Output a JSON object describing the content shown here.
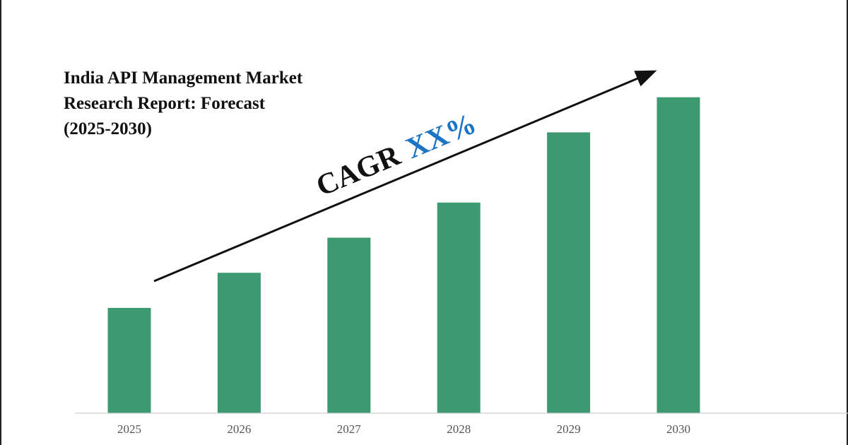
{
  "title": {
    "line1": "India API Management Market",
    "line2": "Research Report: Forecast",
    "line3": "(2025-2030)"
  },
  "cagr": {
    "label": "CAGR",
    "value": "XX%"
  },
  "colors": {
    "bar": "#3d9970",
    "accent": "#1c74c4",
    "text": "#111111",
    "axis": "#cfcfcf"
  },
  "chart_data": {
    "type": "bar",
    "categories": [
      "2025",
      "2026",
      "2027",
      "2028",
      "2029",
      "2030"
    ],
    "values": [
      30,
      40,
      50,
      60,
      80,
      90
    ],
    "ylim": [
      0,
      100
    ],
    "xlabel": "",
    "ylabel": "",
    "grid": false,
    "annotations": [
      "CAGR XX%"
    ]
  }
}
